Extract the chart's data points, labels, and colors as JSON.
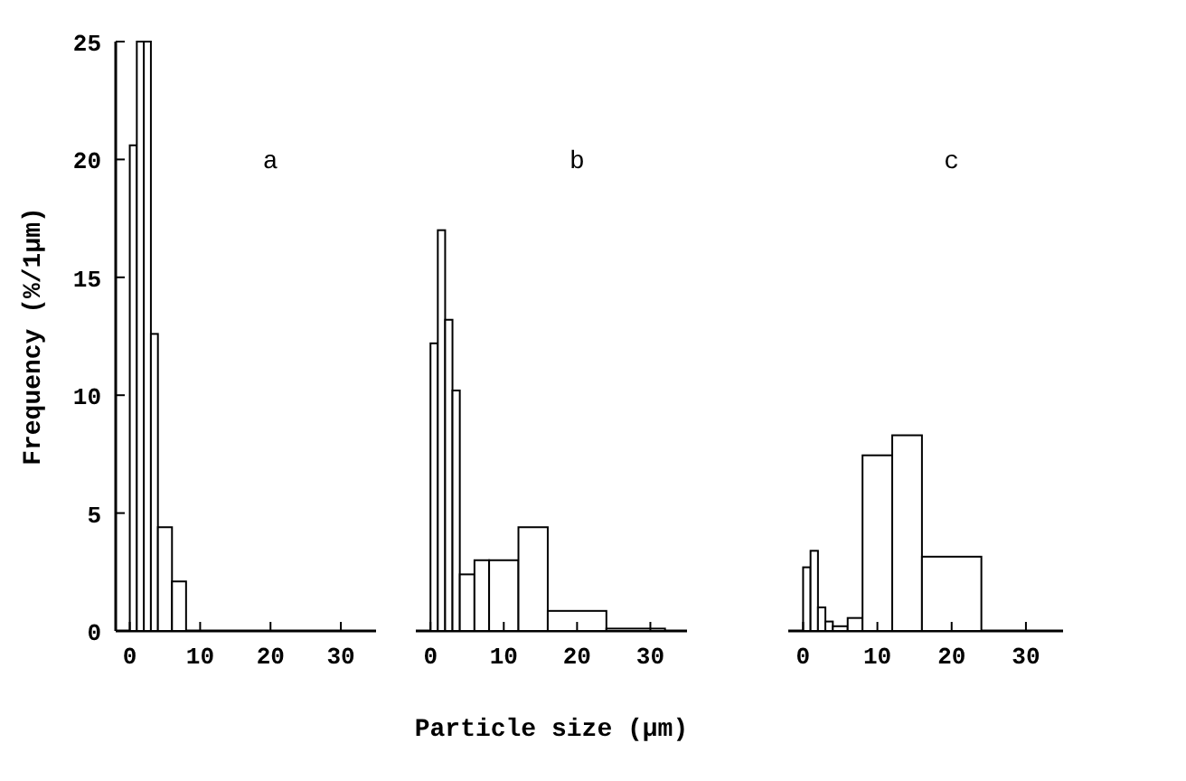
{
  "chart_data": [
    {
      "type": "histogram",
      "title": "a",
      "ylabel": "Frequency (%/1µm)",
      "bins": [
        0,
        1,
        2,
        3,
        4,
        6,
        8
      ],
      "values": [
        20.6,
        25,
        25,
        12.6,
        4.4,
        2.1
      ],
      "color": "#ffffff",
      "xlim": [
        -2,
        35
      ],
      "xticks": [
        0,
        10,
        20,
        30
      ],
      "ylim": [
        0,
        25
      ],
      "yticks": [
        0,
        5,
        10,
        15,
        20,
        25
      ]
    },
    {
      "type": "histogram",
      "title": "b",
      "xlabel": "Particle size (µm)",
      "bins": [
        0,
        1,
        2,
        3,
        4,
        6,
        8,
        12,
        16,
        24,
        32
      ],
      "values": [
        12.2,
        17,
        13.2,
        10.2,
        2.4,
        3,
        3,
        4.4,
        0.85,
        0.1
      ],
      "color": "#ffffff",
      "xlim": [
        -2,
        35
      ],
      "xticks": [
        0,
        10,
        20,
        30
      ],
      "ylim": [
        0,
        25
      ],
      "tick_labels": "x"
    },
    {
      "type": "histogram",
      "title": "c",
      "bins": [
        0,
        1,
        2,
        3,
        4,
        6,
        8,
        12,
        16,
        24
      ],
      "values": [
        2.7,
        3.4,
        1,
        0.4,
        0.2,
        0.55,
        7.45,
        8.3,
        3.15
      ],
      "color": "#ffffff",
      "xlim": [
        -2,
        35
      ],
      "xticks": [
        0,
        10,
        20,
        30
      ],
      "ylim": [
        0,
        25
      ],
      "tick_labels": "x"
    }
  ]
}
